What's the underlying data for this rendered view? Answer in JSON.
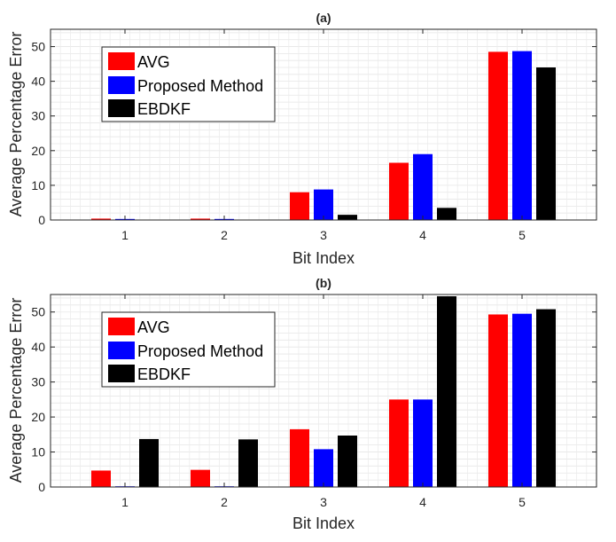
{
  "chart_data": [
    {
      "type": "bar",
      "title": "(a)",
      "xlabel": "Bit Index",
      "ylabel": "Average Percentage Error",
      "categories": [
        "1",
        "2",
        "3",
        "4",
        "5"
      ],
      "ylim": [
        0,
        55
      ],
      "yticks": [
        0,
        10,
        20,
        30,
        40,
        50
      ],
      "grid": "minor",
      "legend_position": "top-left",
      "series": [
        {
          "name": "AVG",
          "color": "#ff0000",
          "values": [
            0.4,
            0.4,
            8.0,
            16.5,
            48.5
          ]
        },
        {
          "name": "Proposed Method",
          "color": "#0000ff",
          "values": [
            0.3,
            0.3,
            8.8,
            19.0,
            48.7
          ]
        },
        {
          "name": "EBDKF",
          "color": "#000000",
          "values": [
            0.0,
            0.0,
            1.5,
            3.5,
            44.0
          ]
        }
      ]
    },
    {
      "type": "bar",
      "title": "(b)",
      "xlabel": "Bit Index",
      "ylabel": "Average Percentage Error",
      "categories": [
        "1",
        "2",
        "3",
        "4",
        "5"
      ],
      "ylim": [
        0,
        55
      ],
      "yticks": [
        0,
        10,
        20,
        30,
        40,
        50
      ],
      "grid": "minor",
      "legend_position": "top-left",
      "series": [
        {
          "name": "AVG",
          "color": "#ff0000",
          "values": [
            4.7,
            4.9,
            16.5,
            25.0,
            49.3
          ]
        },
        {
          "name": "Proposed Method",
          "color": "#0000ff",
          "values": [
            0.2,
            0.2,
            10.8,
            25.0,
            49.5
          ]
        },
        {
          "name": "EBDKF",
          "color": "#000000",
          "values": [
            13.7,
            13.6,
            14.7,
            54.5,
            50.8
          ]
        }
      ]
    }
  ]
}
